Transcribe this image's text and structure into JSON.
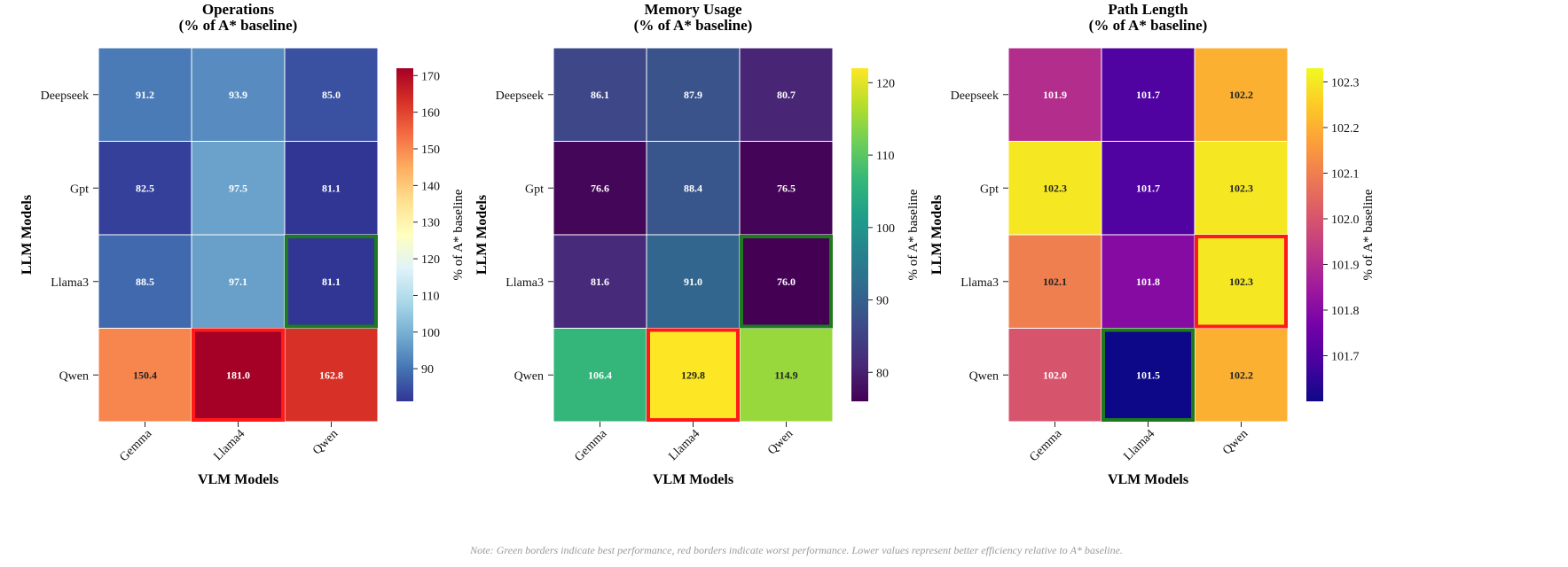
{
  "note": "Note: Green borders indicate best performance, red borders indicate worst performance. Lower values represent better efficiency relative to A* baseline.",
  "colors": {
    "best_border": "#1e7a1e",
    "worst_border": "#ff1a1a",
    "grid_line": "#ffffff"
  },
  "chart_data": [
    {
      "type": "heatmap",
      "title_lines": [
        "Operations",
        "(% of A* baseline)"
      ],
      "xlabel": "VLM Models",
      "ylabel": "LLM Models",
      "x_categories": [
        "Gemma",
        "Llama4",
        "Qwen"
      ],
      "y_categories": [
        "Deepseek",
        "Gpt",
        "Llama3",
        "Qwen"
      ],
      "values": [
        [
          91.2,
          93.9,
          85.0
        ],
        [
          82.5,
          97.5,
          81.1
        ],
        [
          88.5,
          97.1,
          81.1
        ],
        [
          150.4,
          181.0,
          162.8
        ]
      ],
      "value_labels": [
        [
          "91.2",
          "93.9",
          "85.0"
        ],
        [
          "82.5",
          "97.5",
          "81.1"
        ],
        [
          "88.5",
          "97.1",
          "81.1"
        ],
        [
          "150.4",
          "181.0",
          "162.8"
        ]
      ],
      "colormap": "RdYlBu_r",
      "colorbar_label": "% of A* baseline",
      "colorbar_ticks": [
        "90",
        "100",
        "110",
        "120",
        "130",
        "140",
        "150",
        "160",
        "170"
      ],
      "colorbar_range": [
        81.1,
        172
      ],
      "best_cell": {
        "row": "Llama3",
        "col": "Qwen"
      },
      "worst_cell": {
        "row": "Qwen",
        "col": "Llama4"
      }
    },
    {
      "type": "heatmap",
      "title_lines": [
        "Memory Usage",
        "(% of A* baseline)"
      ],
      "xlabel": "VLM Models",
      "ylabel": "LLM Models",
      "x_categories": [
        "Gemma",
        "Llama4",
        "Qwen"
      ],
      "y_categories": [
        "Deepseek",
        "Gpt",
        "Llama3",
        "Qwen"
      ],
      "values": [
        [
          86.1,
          87.9,
          80.7
        ],
        [
          76.6,
          88.4,
          76.5
        ],
        [
          81.6,
          91.0,
          76.0
        ],
        [
          106.4,
          129.8,
          114.9
        ]
      ],
      "value_labels": [
        [
          "86.1",
          "87.9",
          "80.7"
        ],
        [
          "76.6",
          "88.4",
          "76.5"
        ],
        [
          "81.6",
          "91.0",
          "76.0"
        ],
        [
          "106.4",
          "129.8",
          "114.9"
        ]
      ],
      "colormap": "viridis",
      "colorbar_label": "% of A* baseline",
      "colorbar_ticks": [
        "80",
        "90",
        "100",
        "110",
        "120"
      ],
      "colorbar_range": [
        76.0,
        122
      ],
      "best_cell": {
        "row": "Llama3",
        "col": "Qwen"
      },
      "worst_cell": {
        "row": "Qwen",
        "col": "Llama4"
      }
    },
    {
      "type": "heatmap",
      "title_lines": [
        "Path Length",
        "(% of A* baseline)"
      ],
      "xlabel": "VLM Models",
      "ylabel": "LLM Models",
      "x_categories": [
        "Gemma",
        "Llama4",
        "Qwen"
      ],
      "y_categories": [
        "Deepseek",
        "Gpt",
        "Llama3",
        "Qwen"
      ],
      "values": [
        [
          101.9,
          101.7,
          102.2
        ],
        [
          102.3,
          101.7,
          102.3
        ],
        [
          102.1,
          101.8,
          102.3
        ],
        [
          102.0,
          101.5,
          102.2
        ]
      ],
      "value_labels": [
        [
          "101.9",
          "101.7",
          "102.2"
        ],
        [
          "102.3",
          "101.7",
          "102.3"
        ],
        [
          "102.1",
          "101.8",
          "102.3"
        ],
        [
          "102.0",
          "101.5",
          "102.2"
        ]
      ],
      "colormap": "plasma",
      "colorbar_label": "% of A* baseline",
      "colorbar_ticks": [
        "101.7",
        "101.8",
        "101.9",
        "102.0",
        "102.1",
        "102.2",
        "102.3"
      ],
      "colorbar_range": [
        101.6,
        102.33
      ],
      "best_cell": {
        "row": "Qwen",
        "col": "Llama4"
      },
      "worst_cell": {
        "row": "Llama3",
        "col": "Qwen"
      }
    }
  ]
}
